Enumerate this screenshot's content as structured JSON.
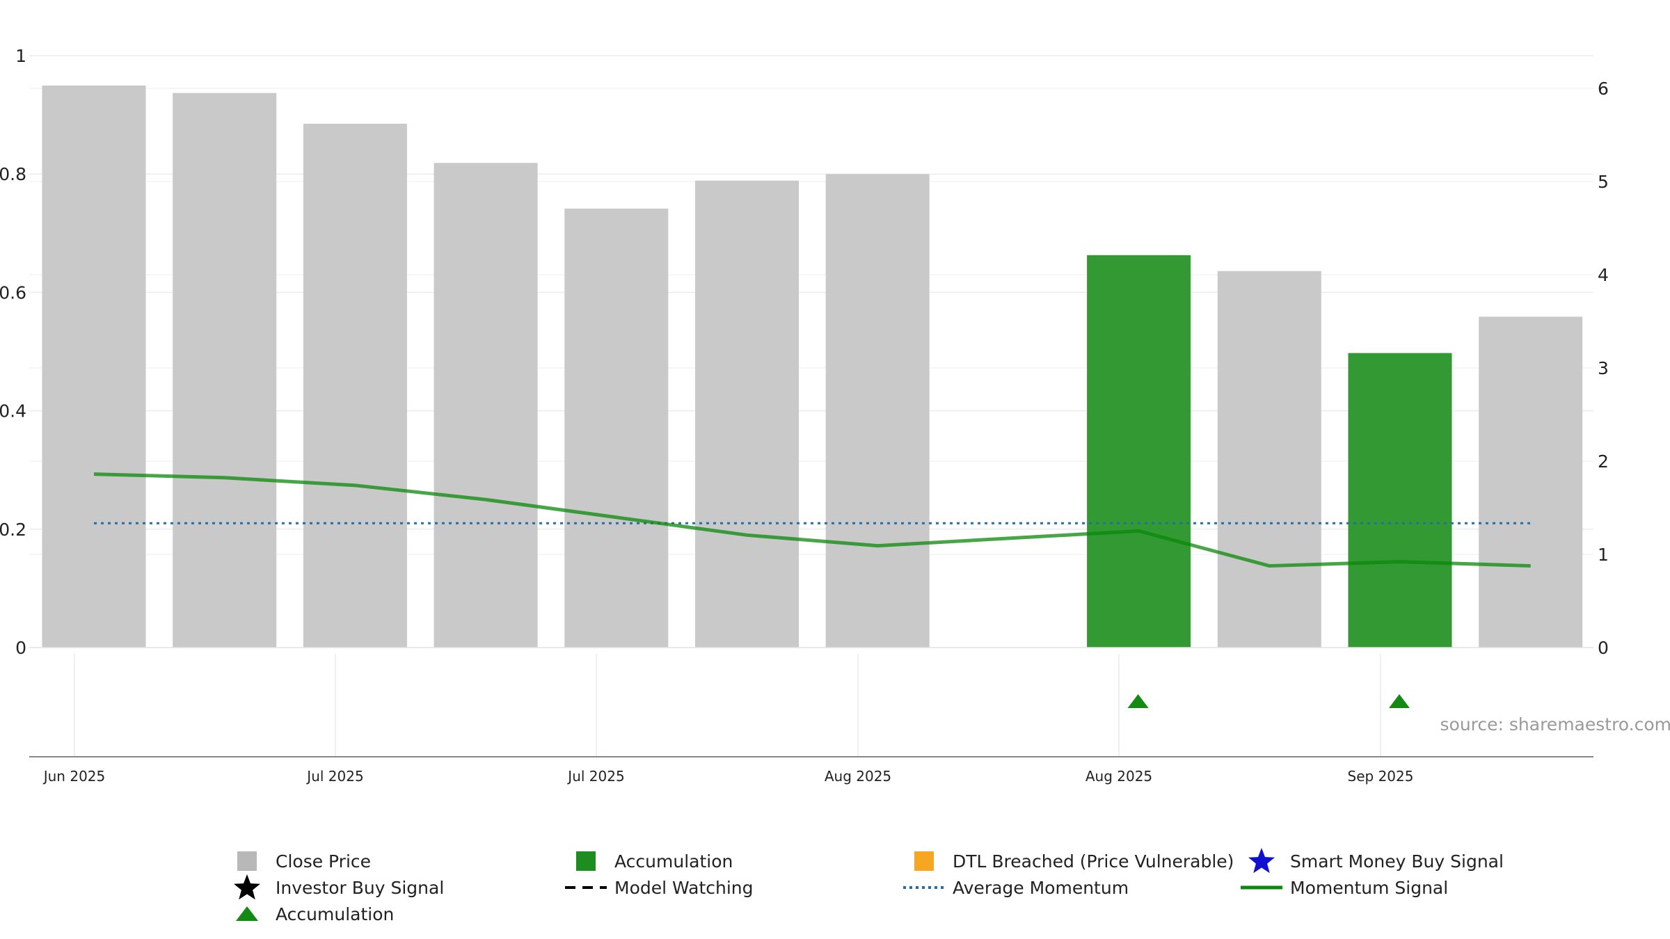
{
  "chart_data": {
    "type": "bar",
    "x_tick_labels": [
      "Jun 2025",
      "Jul 2025",
      "Jul 2025",
      "Aug 2025",
      "Aug 2025",
      "Sep 2025"
    ],
    "left_axis": {
      "ylim": [
        0,
        1
      ],
      "ticks": [
        0,
        0.2,
        0.4,
        0.6,
        0.8,
        1
      ],
      "tick_labels": [
        "0",
        "0.2",
        "0.4",
        "0.6",
        "0.8",
        "1"
      ]
    },
    "right_axis": {
      "ylim": [
        0,
        6.3
      ],
      "ticks": [
        0,
        1,
        2,
        3,
        4,
        5,
        6
      ],
      "tick_labels": [
        "0",
        "1",
        "2",
        "3",
        "4",
        "5",
        "6"
      ]
    },
    "categories_index": [
      0,
      1,
      2,
      3,
      4,
      5,
      6,
      7,
      8,
      9,
      10,
      11
    ],
    "series": [
      {
        "name": "Close Price",
        "kind": "bar",
        "axis": "right",
        "values": [
          6.03,
          5.95,
          5.62,
          5.2,
          4.71,
          5.01,
          5.08,
          null,
          4.21,
          4.04,
          3.16,
          3.55
        ],
        "colors": [
          "#c9c9c9",
          "#c9c9c9",
          "#c9c9c9",
          "#c9c9c9",
          "#c9c9c9",
          "#c9c9c9",
          "#c9c9c9",
          "#c9c9c9",
          "#339933",
          "#c9c9c9",
          "#339933",
          "#c9c9c9"
        ]
      },
      {
        "name": "Momentum Signal",
        "kind": "line",
        "axis": "left",
        "values": [
          0.293,
          0.287,
          0.274,
          0.25,
          0.22,
          0.19,
          0.172,
          null,
          0.197,
          0.138,
          0.145,
          0.138
        ]
      },
      {
        "name": "Average Momentum",
        "kind": "hline",
        "axis": "left",
        "value": 0.21
      },
      {
        "name": "Accumulation",
        "kind": "marker",
        "marker": "triangle-up",
        "indices": [
          8,
          10
        ]
      }
    ],
    "source": "source: sharemaestro.com",
    "legend": [
      {
        "label": "Close Price",
        "symbol": "square",
        "color": "#b8b8b8"
      },
      {
        "label": "Accumulation",
        "symbol": "square",
        "color": "#1f8c1f"
      },
      {
        "label": "DTL Breached (Price Vulnerable)",
        "symbol": "square",
        "color": "#f5a623"
      },
      {
        "label": "Smart Money Buy Signal",
        "symbol": "star",
        "color": "#1010d0"
      },
      {
        "label": "Investor Buy Signal",
        "symbol": "star",
        "color": "#000000"
      },
      {
        "label": "Model Watching",
        "symbol": "dash",
        "color": "#000000"
      },
      {
        "label": "Average Momentum",
        "symbol": "dot",
        "color": "#1f6fa8"
      },
      {
        "label": "Momentum Signal",
        "symbol": "line",
        "color": "#0a8a0a"
      },
      {
        "label": "Accumulation",
        "symbol": "triangle",
        "color": "#138a13"
      }
    ],
    "legend_position": "bottom"
  }
}
